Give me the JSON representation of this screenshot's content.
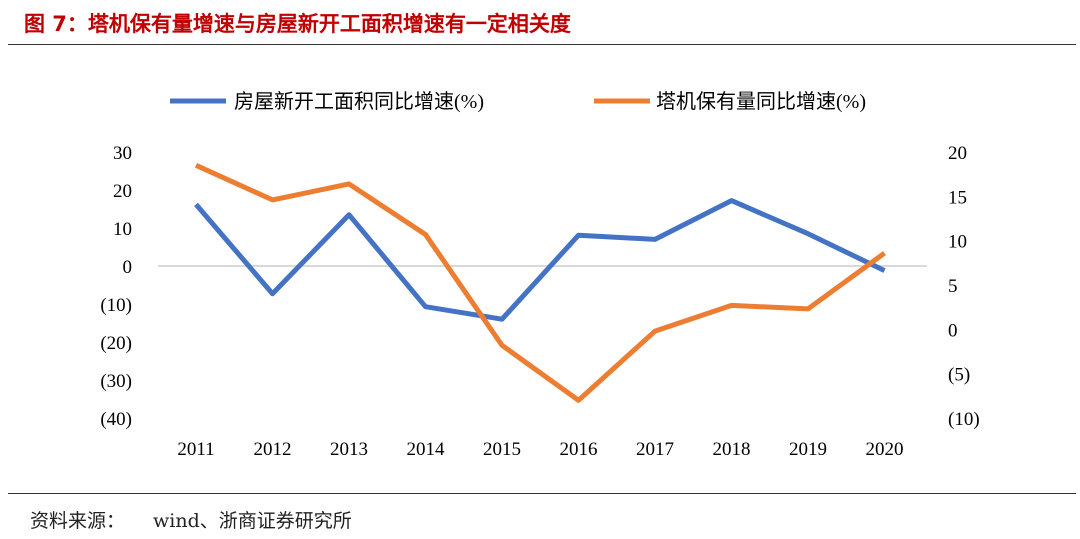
{
  "figure": {
    "title": "图 7：塔机保有量增速与房屋新开工面积增速有一定相关度",
    "source_label": "资料来源：",
    "source_text": "wind、浙商证券研究所"
  },
  "chart_data": {
    "type": "line",
    "title": "图 7：塔机保有量增速与房屋新开工面积增速有一定相关度",
    "legend_position": "top",
    "x": [
      "2011",
      "2012",
      "2013",
      "2014",
      "2015",
      "2016",
      "2017",
      "2018",
      "2019",
      "2020"
    ],
    "y_left": {
      "ylim": [
        -40,
        30
      ],
      "ticks": [
        30,
        20,
        10,
        0,
        -10,
        -20,
        -30,
        -40
      ],
      "tick_labels": [
        "30",
        "20",
        "10",
        "0",
        "(10)",
        "(20)",
        "(30)",
        "(40)"
      ]
    },
    "y_right": {
      "ylim": [
        -10,
        20
      ],
      "ticks": [
        20,
        15,
        10,
        5,
        0,
        -5,
        -10
      ],
      "tick_labels": [
        "20",
        "15",
        "10",
        "5",
        "0",
        "(5)",
        "(10)"
      ]
    },
    "series": [
      {
        "name": "房屋新开工面积同比增速(%)",
        "axis": "left",
        "color": "#4472c4",
        "values": [
          16.2,
          -7.3,
          13.5,
          -10.7,
          -14.0,
          8.1,
          7.0,
          17.2,
          8.5,
          -1.2
        ]
      },
      {
        "name": "塔机保有量同比增速(%)",
        "axis": "right",
        "color": "#ed7d31",
        "values": [
          18.5,
          14.6,
          16.4,
          10.7,
          -1.8,
          -8.0,
          -0.2,
          2.7,
          2.3,
          8.6
        ]
      }
    ]
  }
}
